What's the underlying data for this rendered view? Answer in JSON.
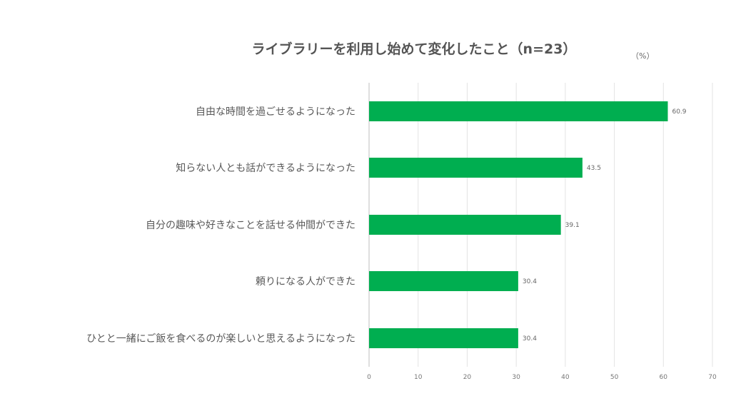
{
  "chart_data": {
    "type": "bar",
    "orientation": "horizontal",
    "title": "ライブラリーを利用し始めて変化したこと（n=23）",
    "unit": "（%）",
    "categories": [
      "自由な時間を過ごせるようになった",
      "知らない人とも話ができるようになった",
      "自分の趣味や好きなことを話せる仲間ができた",
      "頼りになる人ができた",
      "ひとと一緒にご飯を食べるのが楽しいと思えるようになった"
    ],
    "values": [
      60.9,
      43.5,
      39.1,
      30.4,
      30.4
    ],
    "value_labels": [
      "60.9",
      "43.5",
      "39.1",
      "30.4",
      "30.4"
    ],
    "xlim": [
      0,
      70
    ],
    "xticks": [
      "0",
      "10",
      "20",
      "30",
      "40",
      "50",
      "60",
      "70"
    ],
    "grid": true,
    "bar_color": "#00AE50"
  }
}
